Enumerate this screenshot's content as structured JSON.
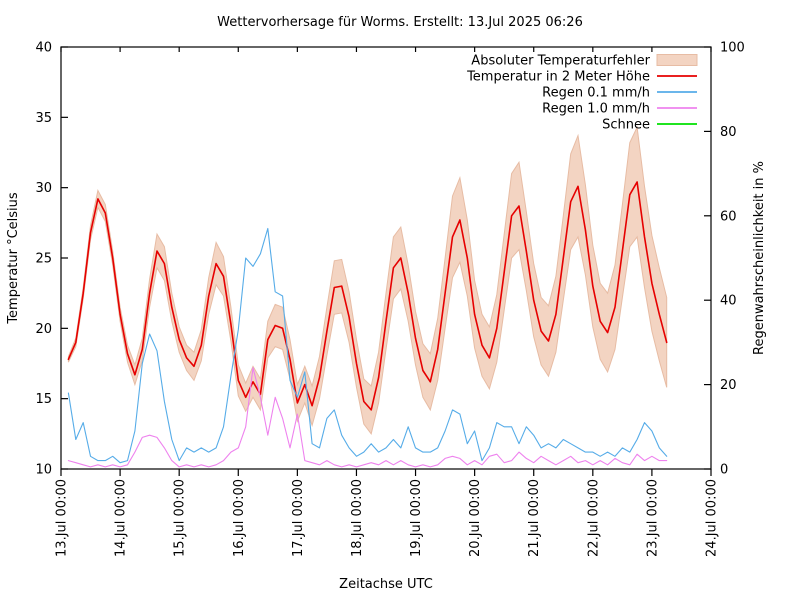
{
  "chart_data": {
    "type": "line",
    "title": "Wettervorhersage für Worms. Erstellt: 13.Jul 2025 06:26",
    "xlabel": "Zeitachse UTC",
    "ylabel_left": "Temperatur °Celsius",
    "ylabel_right": "Regenwahrscheinlichkeit in %",
    "grid": false,
    "legend_position": "top-right-inside",
    "x_axis": {
      "tick_labels": [
        "13.Jul 00:00",
        "14.Jul 00:00",
        "15.Jul 00:00",
        "16.Jul 00:00",
        "17.Jul 00:00",
        "18.Jul 00:00",
        "19.Jul 00:00",
        "20.Jul 00:00",
        "21.Jul 00:00",
        "22.Jul 00:00",
        "23.Jul 00:00",
        "24.Jul 00:00"
      ],
      "range_days": [
        0,
        11
      ]
    },
    "y_left": {
      "min": 10,
      "max": 40,
      "ticks": [
        10,
        15,
        20,
        25,
        30,
        35,
        40
      ]
    },
    "y_right": {
      "min": 0,
      "max": 100,
      "ticks": [
        0,
        20,
        40,
        60,
        80,
        100
      ]
    },
    "time_grid": {
      "t_start_days": 0.125,
      "t_step_days": 0.125,
      "n_points": 82
    },
    "series": [
      {
        "name": "Absoluter Temperaturfehler",
        "kind": "band",
        "axis": "left",
        "fill_color": "#f3d4c2",
        "edge_color": "#e7bca4",
        "halfwidth": [
          0.2,
          0.3,
          0.4,
          0.5,
          0.6,
          0.6,
          0.5,
          0.5,
          0.6,
          0.7,
          0.8,
          1.0,
          1.2,
          1.2,
          1.0,
          0.9,
          0.9,
          1.0,
          1.1,
          1.3,
          1.5,
          1.4,
          1.2,
          1.1,
          1.0,
          1.1,
          1.1,
          1.3,
          1.5,
          1.5,
          1.4,
          1.3,
          1.3,
          1.4,
          1.5,
          1.7,
          1.9,
          1.9,
          1.8,
          1.7,
          1.6,
          1.7,
          1.8,
          2.0,
          2.2,
          2.2,
          2.0,
          1.9,
          1.9,
          2.0,
          2.2,
          2.5,
          2.9,
          3.0,
          2.7,
          2.4,
          2.2,
          2.2,
          2.4,
          2.7,
          3.0,
          3.1,
          2.8,
          2.6,
          2.4,
          2.5,
          2.7,
          3.0,
          3.4,
          3.6,
          3.2,
          2.9,
          2.7,
          2.8,
          3.0,
          3.3,
          3.7,
          3.9,
          3.6,
          3.4,
          3.3,
          3.2
        ]
      },
      {
        "name": "Temperatur in 2 Meter Höhe",
        "kind": "line",
        "axis": "left",
        "color": "#e60000",
        "width": 1.6,
        "values": [
          17.8,
          19.0,
          22.5,
          26.8,
          29.2,
          28.2,
          25.0,
          21.0,
          18.2,
          16.7,
          18.5,
          22.5,
          25.5,
          24.6,
          21.5,
          19.2,
          17.9,
          17.3,
          18.8,
          22.3,
          24.6,
          23.7,
          20.3,
          16.3,
          15.1,
          16.2,
          15.3,
          19.2,
          20.2,
          20.0,
          17.8,
          14.7,
          16.0,
          14.5,
          16.5,
          19.8,
          22.9,
          23.0,
          20.8,
          17.5,
          14.8,
          14.2,
          16.5,
          20.5,
          24.3,
          25.0,
          22.5,
          19.3,
          17.0,
          16.2,
          18.5,
          22.5,
          26.5,
          27.7,
          25.0,
          21.0,
          18.8,
          17.9,
          20.0,
          24.0,
          28.0,
          28.7,
          25.5,
          22.0,
          19.8,
          19.1,
          21.0,
          25.0,
          29.0,
          30.1,
          27.0,
          23.0,
          20.5,
          19.7,
          21.5,
          25.5,
          29.5,
          30.4,
          26.5,
          23.2,
          21.0,
          19.0
        ]
      },
      {
        "name": "Regen 0.1 mm/h",
        "kind": "line",
        "axis": "right",
        "color": "#56ace8",
        "width": 1.1,
        "values": [
          18,
          7,
          11,
          3,
          2,
          2,
          3,
          1.5,
          2,
          9,
          25,
          32,
          28,
          16,
          7,
          2,
          5,
          4,
          5,
          4,
          5,
          10,
          22,
          33,
          50,
          48,
          51,
          57,
          42,
          41,
          21,
          17,
          23,
          6,
          5,
          12,
          14,
          8,
          5,
          3,
          4,
          6,
          4,
          5,
          7,
          5,
          10,
          5,
          4,
          4,
          5,
          9,
          14,
          13,
          6,
          9,
          2,
          5,
          11,
          10,
          10,
          6,
          10,
          8,
          5,
          6,
          5,
          7,
          6,
          5,
          4,
          4,
          3,
          4,
          3,
          5,
          4,
          7,
          11,
          9,
          5,
          3
        ]
      },
      {
        "name": "Regen 1.0 mm/h",
        "kind": "line",
        "axis": "right",
        "color": "#ee82ee",
        "width": 1.1,
        "values": [
          2,
          1.5,
          1,
          0.5,
          1,
          0.5,
          1,
          0.5,
          1,
          4,
          7.5,
          8,
          7.5,
          5,
          2,
          0.5,
          1,
          0.5,
          1,
          0.5,
          1,
          2,
          4,
          5,
          10,
          24,
          17,
          8,
          17,
          12,
          5,
          13,
          2,
          1.5,
          1,
          2,
          1,
          0.5,
          1,
          0.5,
          1,
          1.5,
          1,
          2,
          1,
          2,
          1,
          0.5,
          1,
          0.5,
          1,
          2.5,
          3,
          2.5,
          1,
          2,
          1,
          3,
          3.5,
          1.5,
          2,
          4,
          2.5,
          1.5,
          3,
          2,
          1,
          2,
          3,
          1.5,
          2,
          1,
          2,
          1,
          2.5,
          1.5,
          1,
          3.5,
          2,
          3,
          2,
          2
        ]
      },
      {
        "name": "Schnee",
        "kind": "line",
        "axis": "right",
        "color": "#00e000",
        "width": 1.1,
        "values": []
      }
    ],
    "legend": [
      "Absoluter Temperaturfehler",
      "Temperatur in 2 Meter Höhe",
      "Regen 0.1 mm/h",
      "Regen 1.0 mm/h",
      "Schnee"
    ],
    "frame_color": "#000000"
  }
}
